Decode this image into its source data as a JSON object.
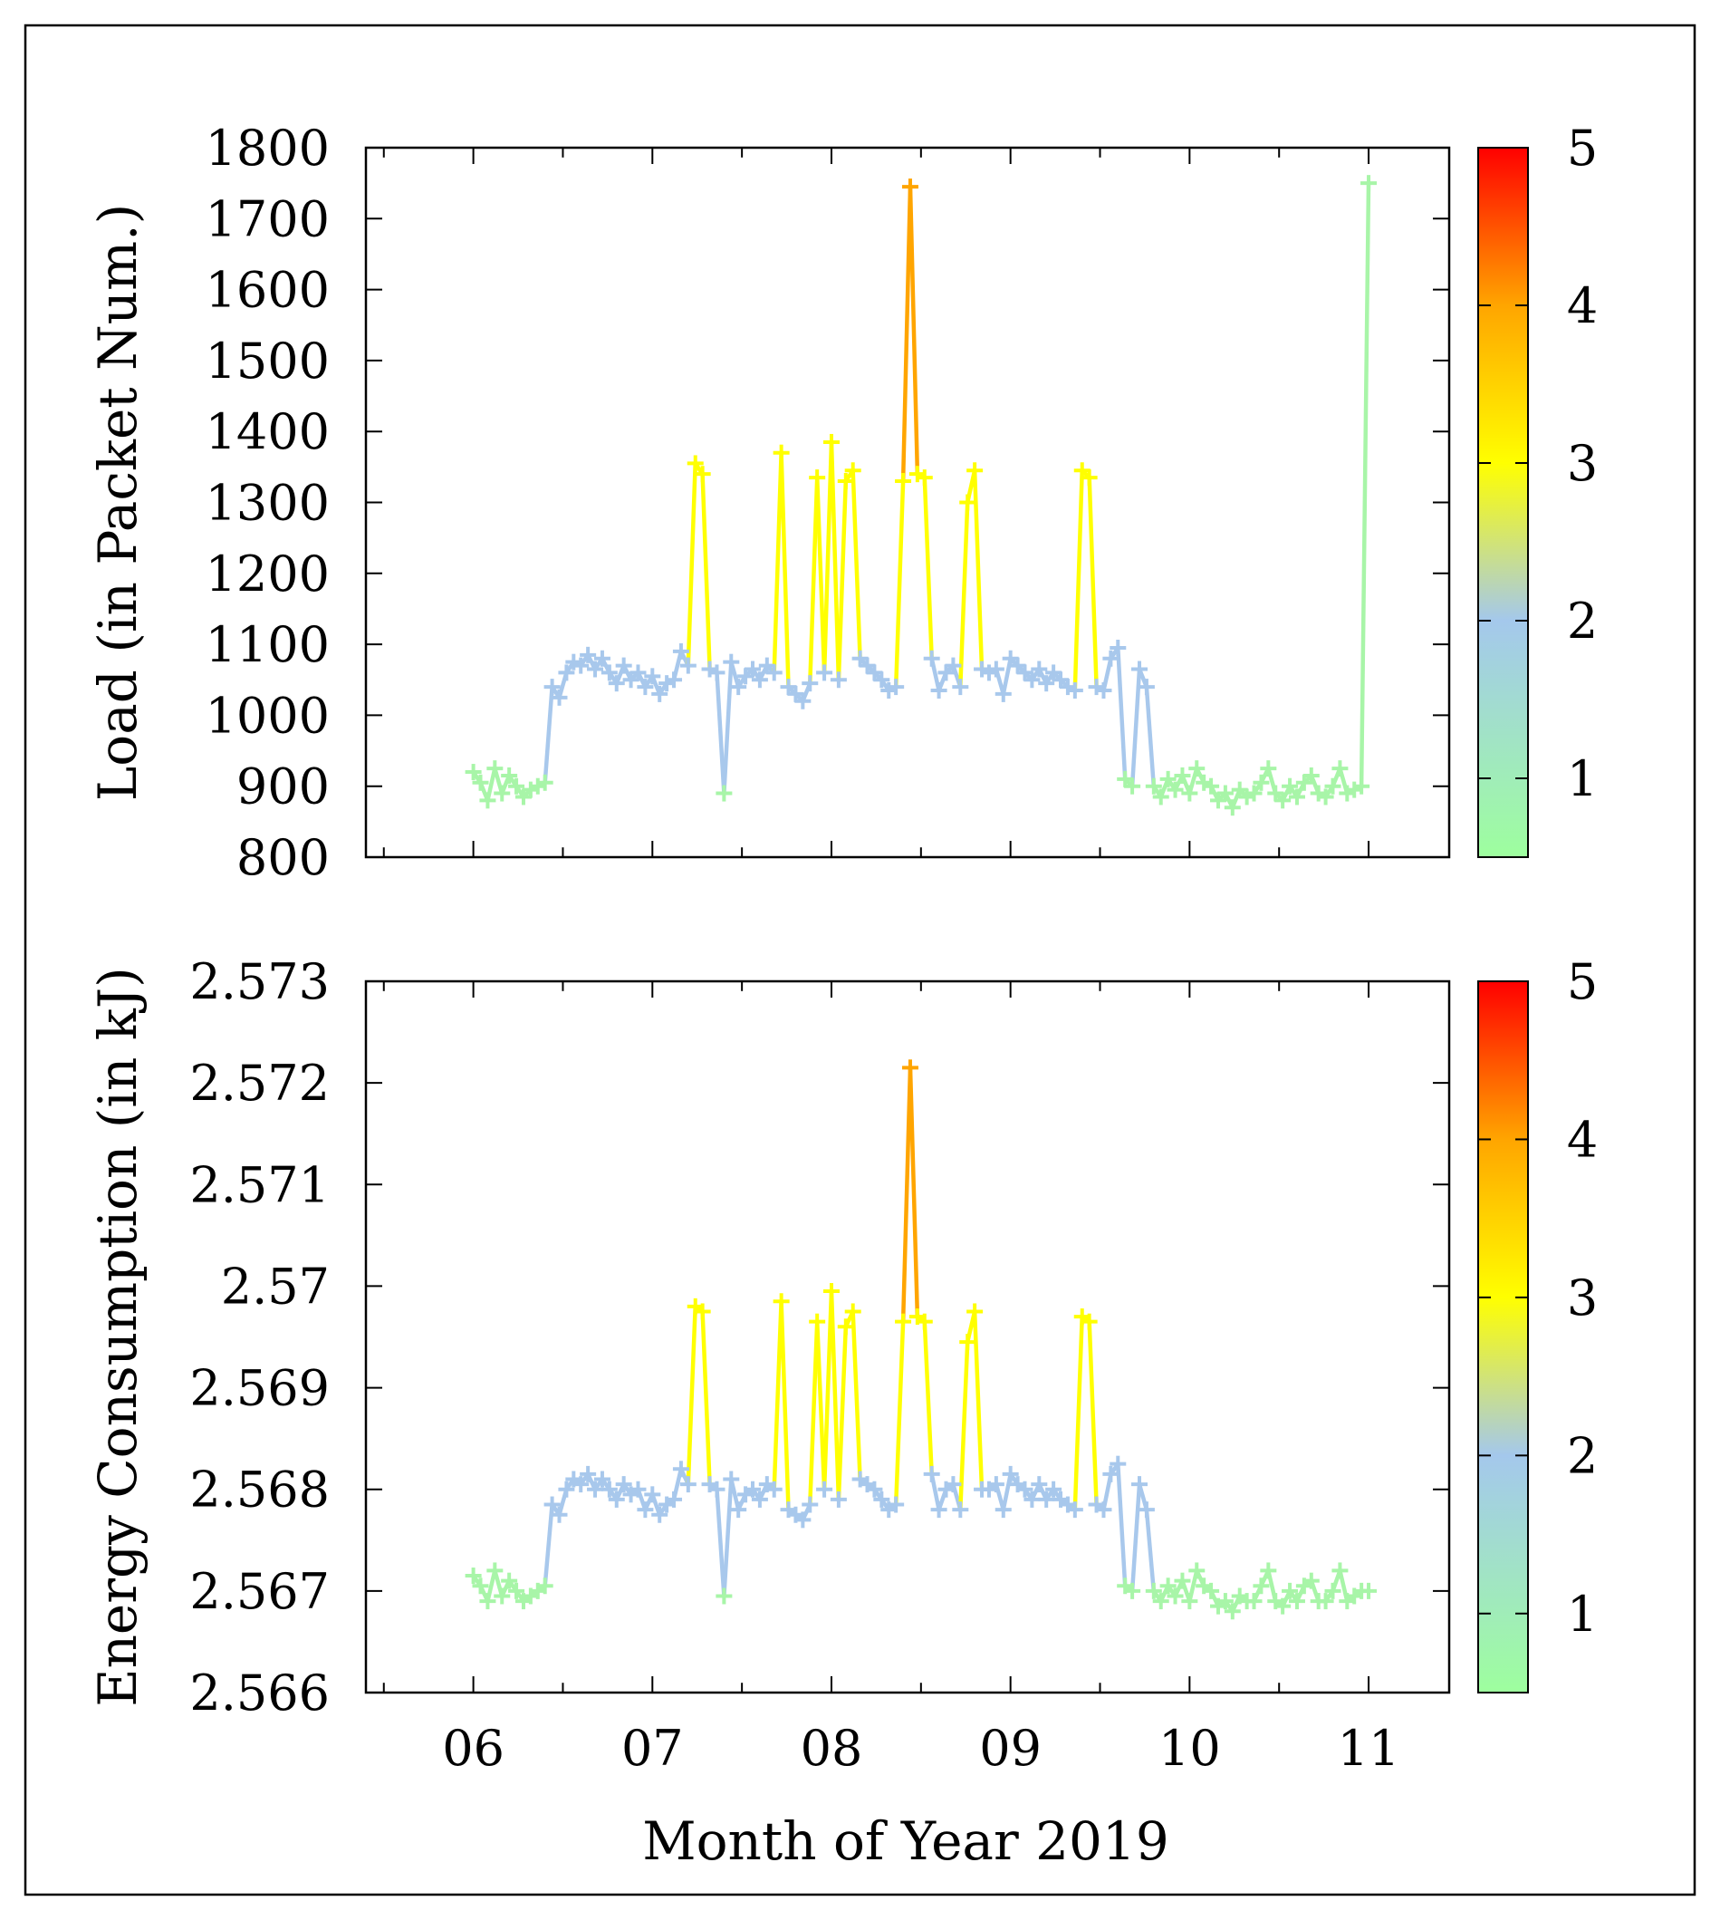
{
  "chart_data": [
    {
      "type": "line",
      "panel": "top",
      "ylabel": "Load (in Packet Num.)",
      "ylim": [
        800,
        1800
      ],
      "yticks": [
        800,
        900,
        1000,
        1100,
        1200,
        1300,
        1400,
        1500,
        1600,
        1700,
        1800
      ],
      "ytick_labels": [
        "800",
        "900",
        "1000",
        "1100",
        "1200",
        "1300",
        "1400",
        "1500",
        "1600",
        "1700",
        "1800"
      ],
      "marker": "+",
      "colorbar": {
        "min": 0.5,
        "max": 5,
        "ticks": [
          1,
          2,
          3,
          4,
          5
        ],
        "tick_labels": [
          "1",
          "2",
          "3",
          "4",
          "5"
        ]
      },
      "x": [
        6.0,
        6.04,
        6.08,
        6.12,
        6.16,
        6.2,
        6.24,
        6.28,
        6.32,
        6.36,
        6.4,
        6.44,
        6.48,
        6.52,
        6.56,
        6.6,
        6.64,
        6.68,
        6.72,
        6.76,
        6.8,
        6.84,
        6.88,
        6.92,
        6.96,
        7.0,
        7.04,
        7.08,
        7.12,
        7.16,
        7.2,
        7.24,
        7.28,
        7.32,
        7.36,
        7.4,
        7.44,
        7.48,
        7.52,
        7.56,
        7.6,
        7.64,
        7.68,
        7.72,
        7.76,
        7.8,
        7.84,
        7.88,
        7.92,
        7.96,
        8.0,
        8.04,
        8.08,
        8.12,
        8.16,
        8.2,
        8.24,
        8.28,
        8.32,
        8.36,
        8.4,
        8.44,
        8.48,
        8.52,
        8.56,
        8.6,
        8.64,
        8.68,
        8.72,
        8.76,
        8.8,
        8.84,
        8.88,
        8.92,
        8.96,
        9.0,
        9.04,
        9.08,
        9.12,
        9.16,
        9.2,
        9.24,
        9.28,
        9.32,
        9.36,
        9.4,
        9.44,
        9.48,
        9.52,
        9.56,
        9.6,
        9.64,
        9.68,
        9.72,
        9.76,
        9.8,
        9.84,
        9.88,
        9.92,
        9.96,
        10.0,
        10.04,
        10.08,
        10.12,
        10.16,
        10.2,
        10.24,
        10.28,
        10.32,
        10.36,
        10.4,
        10.44,
        10.48,
        10.52,
        10.56,
        10.6,
        10.64,
        10.68,
        10.72,
        10.76,
        10.8,
        10.84,
        10.88,
        10.92,
        10.96,
        11.0
      ],
      "y": [
        920,
        905,
        880,
        925,
        890,
        915,
        900,
        885,
        895,
        900,
        905,
        1040,
        1025,
        1060,
        1075,
        1070,
        1085,
        1065,
        1080,
        1060,
        1045,
        1070,
        1050,
        1060,
        1040,
        1055,
        1030,
        1045,
        1050,
        1090,
        1070,
        1355,
        1340,
        1065,
        1060,
        890,
        1075,
        1040,
        1055,
        1065,
        1050,
        1070,
        1060,
        1370,
        1040,
        1030,
        1020,
        1045,
        1335,
        1060,
        1385,
        1050,
        1330,
        1345,
        1080,
        1070,
        1060,
        1050,
        1035,
        1040,
        1330,
        1745,
        1340,
        1335,
        1080,
        1035,
        1060,
        1070,
        1040,
        1300,
        1345,
        1065,
        1060,
        1065,
        1030,
        1080,
        1070,
        1060,
        1050,
        1065,
        1045,
        1060,
        1050,
        1040,
        1035,
        1345,
        1335,
        1040,
        1035,
        1080,
        1095,
        910,
        900,
        1065,
        1040,
        900,
        885,
        910,
        895,
        915,
        890,
        925,
        905,
        900,
        880,
        890,
        870,
        895,
        885,
        890,
        905,
        925,
        890,
        880,
        900,
        885,
        905,
        915,
        890,
        885,
        900,
        925,
        890,
        895,
        900,
        1750
      ],
      "level": [
        1,
        1,
        1,
        1,
        1,
        1,
        1,
        1,
        1,
        1,
        1,
        2,
        2,
        2,
        2,
        2,
        2,
        2,
        2,
        2,
        2,
        2,
        2,
        2,
        2,
        2,
        2,
        2,
        2,
        2,
        2,
        3,
        3,
        2,
        2,
        1,
        2,
        2,
        2,
        2,
        2,
        2,
        2,
        3,
        2,
        2,
        2,
        2,
        3,
        2,
        3,
        2,
        3,
        3,
        2,
        2,
        2,
        2,
        2,
        2,
        3,
        4,
        3,
        3,
        2,
        2,
        2,
        2,
        2,
        3,
        3,
        2,
        2,
        2,
        2,
        2,
        2,
        2,
        2,
        2,
        2,
        2,
        2,
        2,
        2,
        3,
        3,
        2,
        2,
        2,
        2,
        1,
        1,
        2,
        2,
        1,
        1,
        1,
        1,
        1,
        1,
        1,
        1,
        1,
        1,
        1,
        1,
        1,
        1,
        1,
        1,
        1,
        1,
        1,
        1,
        1,
        1,
        1,
        1,
        1,
        1,
        1,
        1,
        1,
        1,
        1
      ]
    },
    {
      "type": "line",
      "panel": "bottom",
      "ylabel": "Energy Consumption (in kJ)",
      "xlabel": "Month of Year 2019",
      "xlim": [
        5.4,
        11.45
      ],
      "xticks": [
        6,
        7,
        8,
        9,
        10,
        11
      ],
      "xtick_labels": [
        "06",
        "07",
        "08",
        "09",
        "10",
        "11"
      ],
      "ylim": [
        2.566,
        2.573
      ],
      "yticks": [
        2.566,
        2.567,
        2.568,
        2.569,
        2.57,
        2.571,
        2.572,
        2.573
      ],
      "ytick_labels": [
        "2.566",
        "2.567",
        "2.568",
        "2.569",
        "2.57",
        "2.571",
        "2.572",
        "2.573"
      ],
      "marker": "+",
      "colorbar": {
        "min": 0.5,
        "max": 5,
        "ticks": [
          1,
          2,
          3,
          4,
          5
        ],
        "tick_labels": [
          "1",
          "2",
          "3",
          "4",
          "5"
        ]
      },
      "x": [
        6.0,
        6.04,
        6.08,
        6.12,
        6.16,
        6.2,
        6.24,
        6.28,
        6.32,
        6.36,
        6.4,
        6.44,
        6.48,
        6.52,
        6.56,
        6.6,
        6.64,
        6.68,
        6.72,
        6.76,
        6.8,
        6.84,
        6.88,
        6.92,
        6.96,
        7.0,
        7.04,
        7.08,
        7.12,
        7.16,
        7.2,
        7.24,
        7.28,
        7.32,
        7.36,
        7.4,
        7.44,
        7.48,
        7.52,
        7.56,
        7.6,
        7.64,
        7.68,
        7.72,
        7.76,
        7.8,
        7.84,
        7.88,
        7.92,
        7.96,
        8.0,
        8.04,
        8.08,
        8.12,
        8.16,
        8.2,
        8.24,
        8.28,
        8.32,
        8.36,
        8.4,
        8.44,
        8.48,
        8.52,
        8.56,
        8.6,
        8.64,
        8.68,
        8.72,
        8.76,
        8.8,
        8.84,
        8.88,
        8.92,
        8.96,
        9.0,
        9.04,
        9.08,
        9.12,
        9.16,
        9.2,
        9.24,
        9.28,
        9.32,
        9.36,
        9.4,
        9.44,
        9.48,
        9.52,
        9.56,
        9.6,
        9.64,
        9.68,
        9.72,
        9.76,
        9.8,
        9.84,
        9.88,
        9.92,
        9.96,
        10.0,
        10.04,
        10.08,
        10.12,
        10.16,
        10.2,
        10.24,
        10.28,
        10.32,
        10.36,
        10.4,
        10.44,
        10.48,
        10.52,
        10.56,
        10.6,
        10.64,
        10.68,
        10.72,
        10.76,
        10.8,
        10.84,
        10.88,
        10.92,
        10.96,
        11.0
      ],
      "y": [
        2.56715,
        2.56705,
        2.5669,
        2.5672,
        2.56695,
        2.5671,
        2.567,
        2.5669,
        2.56695,
        2.567,
        2.56705,
        2.56785,
        2.56775,
        2.568,
        2.5681,
        2.56805,
        2.56815,
        2.568,
        2.5681,
        2.568,
        2.5679,
        2.56805,
        2.56795,
        2.568,
        2.5678,
        2.56795,
        2.56775,
        2.56785,
        2.5679,
        2.5682,
        2.56805,
        2.5698,
        2.56975,
        2.56805,
        2.568,
        2.56695,
        2.5681,
        2.5678,
        2.56795,
        2.568,
        2.5679,
        2.56805,
        2.568,
        2.56985,
        2.5678,
        2.56775,
        2.5677,
        2.56785,
        2.56965,
        2.568,
        2.56995,
        2.5679,
        2.5696,
        2.56975,
        2.5681,
        2.56805,
        2.568,
        2.5679,
        2.5678,
        2.56785,
        2.56965,
        2.57215,
        2.5697,
        2.56965,
        2.56815,
        2.5678,
        2.568,
        2.56805,
        2.5678,
        2.56945,
        2.56975,
        2.568,
        2.568,
        2.56805,
        2.5678,
        2.56815,
        2.56805,
        2.568,
        2.5679,
        2.56805,
        2.5679,
        2.568,
        2.5679,
        2.56785,
        2.5678,
        2.5697,
        2.56965,
        2.56785,
        2.5678,
        2.56815,
        2.56825,
        2.56705,
        2.567,
        2.56805,
        2.5678,
        2.567,
        2.5669,
        2.56705,
        2.56695,
        2.5671,
        2.5669,
        2.5672,
        2.56705,
        2.567,
        2.56685,
        2.5669,
        2.5668,
        2.56695,
        2.5669,
        2.5669,
        2.56705,
        2.5672,
        2.5669,
        2.56685,
        2.567,
        2.5669,
        2.56705,
        2.5671,
        2.5669,
        2.5669,
        2.567,
        2.5672,
        2.5669,
        2.56695,
        2.567,
        2.567
      ],
      "level": [
        1,
        1,
        1,
        1,
        1,
        1,
        1,
        1,
        1,
        1,
        1,
        2,
        2,
        2,
        2,
        2,
        2,
        2,
        2,
        2,
        2,
        2,
        2,
        2,
        2,
        2,
        2,
        2,
        2,
        2,
        2,
        3,
        3,
        2,
        2,
        1,
        2,
        2,
        2,
        2,
        2,
        2,
        2,
        3,
        2,
        2,
        2,
        2,
        3,
        2,
        3,
        2,
        3,
        3,
        2,
        2,
        2,
        2,
        2,
        2,
        3,
        4,
        3,
        3,
        2,
        2,
        2,
        2,
        2,
        3,
        3,
        2,
        2,
        2,
        2,
        2,
        2,
        2,
        2,
        2,
        2,
        2,
        2,
        2,
        2,
        3,
        3,
        2,
        2,
        2,
        2,
        1,
        1,
        2,
        2,
        1,
        1,
        1,
        1,
        1,
        1,
        1,
        1,
        1,
        1,
        1,
        1,
        1,
        1,
        1,
        1,
        1,
        1,
        1,
        1,
        1,
        1,
        1,
        1,
        1,
        1,
        1,
        1,
        1,
        1,
        1
      ]
    }
  ],
  "colors": {
    "gradient_stops": [
      {
        "value": 0.5,
        "color": "#9eff9e"
      },
      {
        "value": 2.0,
        "color": "#a4c8ec"
      },
      {
        "value": 3.0,
        "color": "#ffff00"
      },
      {
        "value": 4.0,
        "color": "#ffa500"
      },
      {
        "value": 5.0,
        "color": "#ff0000"
      }
    ],
    "level_colors": {
      "1": "#a8f5a8",
      "2": "#a8c8ec",
      "3": "#ffff00",
      "4": "#ffa500",
      "5": "#ff0000"
    }
  }
}
